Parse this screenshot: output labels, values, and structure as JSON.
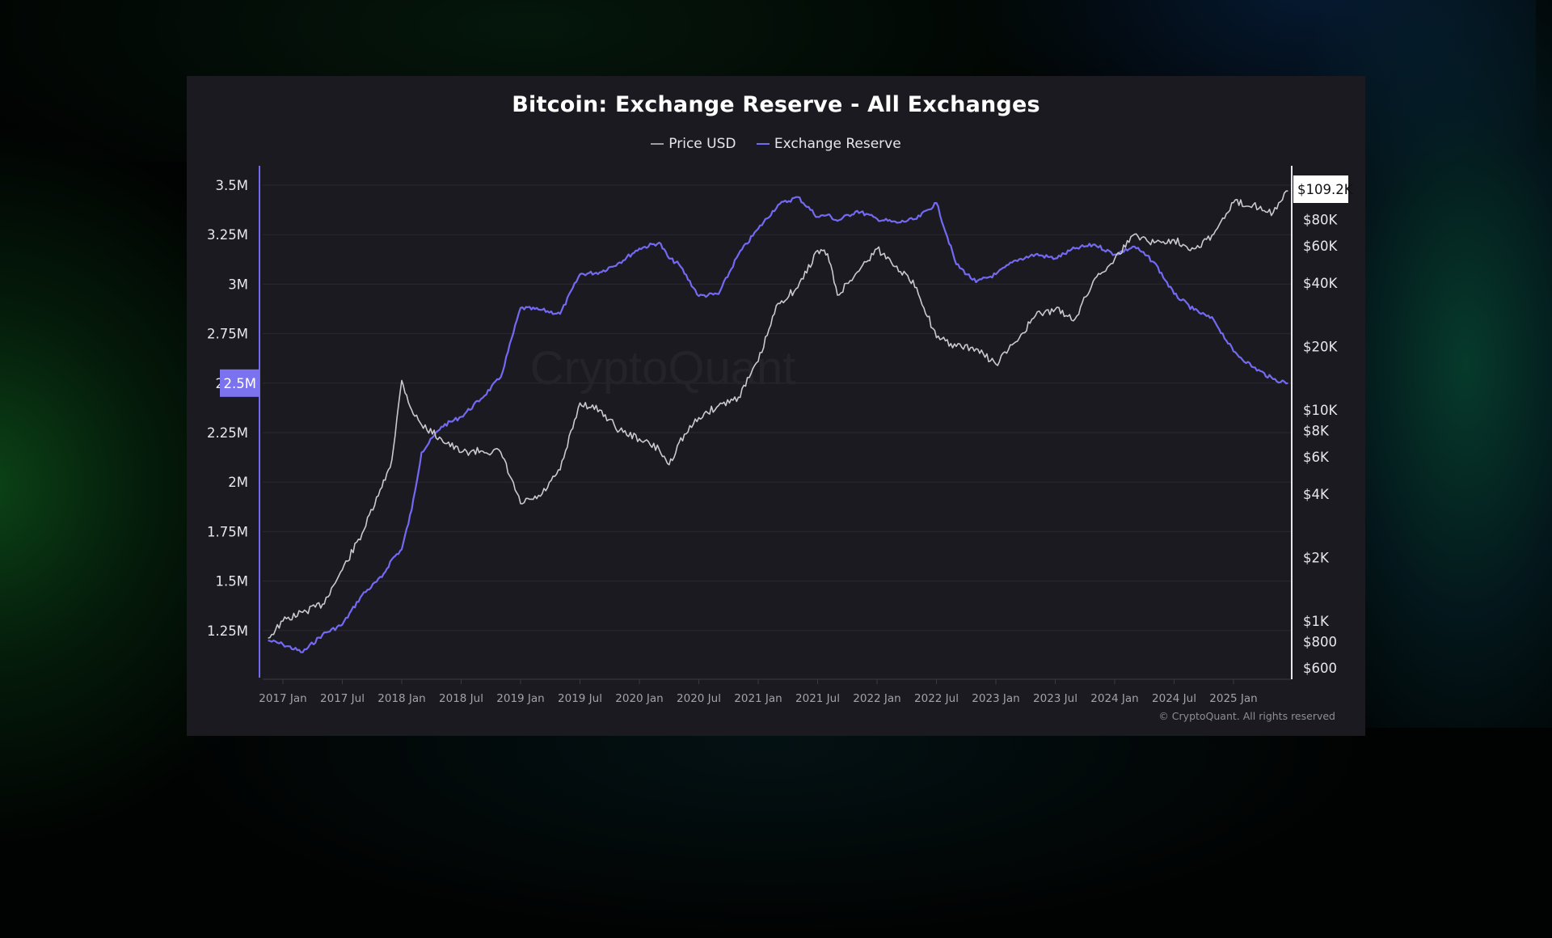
{
  "chart_data": {
    "type": "line",
    "title": "Bitcoin: Exchange Reserve - All Exchanges",
    "legend": [
      {
        "name": "Price USD",
        "color": "#bdbdc3"
      },
      {
        "name": "Exchange Reserve",
        "color": "#7369f2"
      }
    ],
    "legend_position": "top-center",
    "grid": true,
    "x_tick_labels": [
      "2017 Jan",
      "2017 Jul",
      "2018 Jan",
      "2018 Jul",
      "2019 Jan",
      "2019 Jul",
      "2020 Jan",
      "2020 Jul",
      "2021 Jan",
      "2021 Jul",
      "2022 Jan",
      "2022 Jul",
      "2023 Jan",
      "2023 Jul",
      "2024 Jan",
      "2024 Jul",
      "2025 Jan"
    ],
    "y_left": {
      "label": "Exchange Reserve",
      "ticks": [
        "1.25M",
        "1.5M",
        "1.75M",
        "2M",
        "2.25M",
        "2.5M",
        "2.75M",
        "3M",
        "3.25M",
        "3.5M"
      ],
      "tick_values": [
        1250000,
        1500000,
        1750000,
        2000000,
        2250000,
        2500000,
        2750000,
        3000000,
        3250000,
        3500000
      ],
      "range": [
        1000000,
        3550000
      ],
      "highlight_label": "2.5M"
    },
    "y_right": {
      "label": "Price USD",
      "scale": "log",
      "ticks": [
        "$600",
        "$800",
        "$1K",
        "$2K",
        "$4K",
        "$6K",
        "$8K",
        "$10K",
        "$20K",
        "$40K",
        "$60K",
        "$80K"
      ],
      "tick_values": [
        600,
        800,
        1000,
        2000,
        4000,
        6000,
        8000,
        10000,
        20000,
        40000,
        60000,
        80000
      ],
      "current_value_label": "$109.2K"
    },
    "x_months_from_2017_jan": [
      -1.5,
      0,
      2,
      4,
      6,
      8,
      10,
      11,
      12,
      13,
      14,
      16,
      18,
      20,
      22,
      24,
      26,
      28,
      30,
      32,
      34,
      36,
      38,
      39,
      40,
      42,
      44,
      46,
      48,
      50,
      52,
      54,
      55,
      56,
      58,
      60,
      62,
      64,
      66,
      68,
      70,
      72,
      74,
      76,
      78,
      80,
      82,
      84,
      86,
      88,
      90,
      92,
      94,
      96,
      98,
      100,
      101.5
    ],
    "series": [
      {
        "name": "Exchange Reserve",
        "unit": "BTC",
        "values": [
          1200000,
          1180000,
          1140000,
          1230000,
          1280000,
          1430000,
          1520000,
          1610000,
          1660000,
          1860000,
          2150000,
          2280000,
          2330000,
          2420000,
          2530000,
          2880000,
          2870000,
          2850000,
          3050000,
          3060000,
          3110000,
          3180000,
          3210000,
          3130000,
          3100000,
          2940000,
          2950000,
          3150000,
          3280000,
          3400000,
          3440000,
          3340000,
          3350000,
          3320000,
          3370000,
          3330000,
          3310000,
          3330000,
          3410000,
          3100000,
          3010000,
          3050000,
          3120000,
          3150000,
          3130000,
          3180000,
          3200000,
          3150000,
          3190000,
          3110000,
          2950000,
          2870000,
          2820000,
          2660000,
          2580000,
          2520000,
          2500000
        ]
      },
      {
        "name": "Price USD",
        "unit": "USD",
        "values": [
          830,
          1000,
          1100,
          1200,
          1750,
          2600,
          4300,
          5800,
          13800,
          10000,
          8500,
          7300,
          6300,
          6400,
          6300,
          3600,
          3900,
          5200,
          10800,
          10000,
          8000,
          7300,
          6500,
          5500,
          7000,
          9200,
          10500,
          11500,
          17000,
          32000,
          38000,
          57000,
          55000,
          35000,
          45000,
          58000,
          48000,
          38000,
          22000,
          20000,
          19500,
          16500,
          21000,
          28000,
          30000,
          27000,
          42000,
          52000,
          68000,
          62000,
          64000,
          58000,
          68000,
          96000,
          94000,
          86000,
          109200
        ]
      }
    ]
  },
  "legend": {
    "price_label": "Price USD",
    "reserve_label": "Exchange Reserve"
  },
  "watermark": "CryptoQuant",
  "copyright": "© CryptoQuant. All rights reserved",
  "colors": {
    "panel_bg": "#1b1a20",
    "reserve": "#7369f2",
    "price": "#c9c9ce",
    "grid": "#2a2930",
    "axis_text": "#e8e8ec"
  }
}
